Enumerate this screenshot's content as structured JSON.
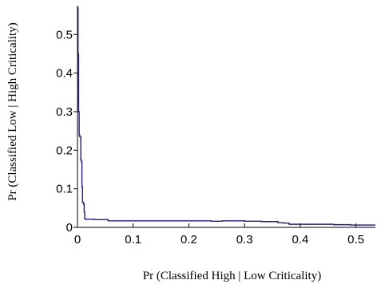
{
  "chart_data": {
    "type": "line",
    "title": "",
    "xlabel": "Pr (Classified High | Low Criticality)",
    "ylabel": "Pr (Classified Low | High Criticality)",
    "xlim": [
      0,
      0.535
    ],
    "ylim": [
      0,
      0.575
    ],
    "xticks": [
      0,
      0.1,
      0.2,
      0.3,
      0.4,
      0.5
    ],
    "xtick_labels": [
      "0",
      "0.1",
      "0.2",
      "0.3",
      "0.4",
      "0.5"
    ],
    "yticks": [
      0,
      0.1,
      0.2,
      0.3,
      0.4,
      0.5
    ],
    "ytick_labels": [
      "0",
      "0.1",
      "0.2",
      "0.3",
      "0.4",
      "0.5"
    ],
    "grid": false,
    "line_color": "#1c1c8c",
    "series": [
      {
        "step": true,
        "x": [
          0,
          0.001,
          0.002,
          0.003,
          0.004,
          0.006,
          0.007,
          0.008,
          0.009,
          0.011,
          0.012,
          0.013,
          0.015,
          0.03,
          0.055,
          0.1,
          0.2,
          0.24,
          0.26,
          0.3,
          0.33,
          0.36,
          0.37,
          0.38,
          0.46,
          0.49,
          0.535
        ],
        "y": [
          0.57,
          0.45,
          0.3,
          0.24,
          0.235,
          0.175,
          0.17,
          0.105,
          0.065,
          0.06,
          0.04,
          0.022,
          0.021,
          0.02,
          0.017,
          0.017,
          0.017,
          0.016,
          0.017,
          0.016,
          0.015,
          0.012,
          0.011,
          0.008,
          0.007,
          0.006,
          0.006
        ]
      }
    ]
  }
}
